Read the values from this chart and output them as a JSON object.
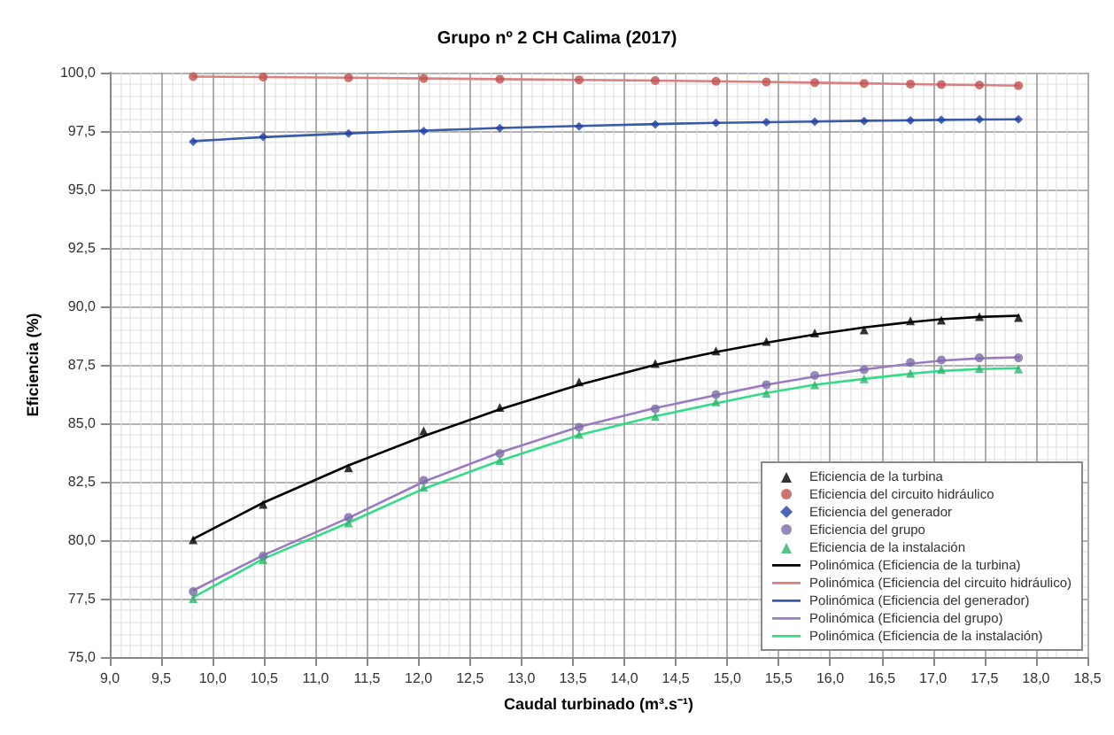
{
  "chart_data": {
    "type": "scatter",
    "title": "Grupo nº 2 CH Calima (2017)",
    "xlabel": "Caudal turbinado (m³.s⁻¹)",
    "ylabel": "Eficiencia (%)",
    "xlim": [
      9,
      18.5
    ],
    "ylim": [
      75,
      100
    ],
    "xticks": [
      {
        "value": 9,
        "label": "9,0"
      },
      {
        "value": 9.5,
        "label": "9,5"
      },
      {
        "value": 10,
        "label": "10,0"
      },
      {
        "value": 10.5,
        "label": "10,5"
      },
      {
        "value": 11,
        "label": "11,0"
      },
      {
        "value": 11.5,
        "label": "11,5"
      },
      {
        "value": 12,
        "label": "12,0"
      },
      {
        "value": 12.5,
        "label": "12,5"
      },
      {
        "value": 13,
        "label": "13,0"
      },
      {
        "value": 13.5,
        "label": "13,5"
      },
      {
        "value": 14,
        "label": "14,0"
      },
      {
        "value": 14.5,
        "label": "14,5"
      },
      {
        "value": 15,
        "label": "15,0"
      },
      {
        "value": 15.5,
        "label": "15,5"
      },
      {
        "value": 16,
        "label": "16,0"
      },
      {
        "value": 16.5,
        "label": "16,5"
      },
      {
        "value": 17,
        "label": "17,0"
      },
      {
        "value": 17.5,
        "label": "17,5"
      },
      {
        "value": 18,
        "label": "18,0"
      },
      {
        "value": 18.5,
        "label": "18,5"
      }
    ],
    "yticks": [
      {
        "value": 75,
        "label": "75,0"
      },
      {
        "value": 77.5,
        "label": "77,5"
      },
      {
        "value": 80,
        "label": "80,0"
      },
      {
        "value": 82.5,
        "label": "82,5"
      },
      {
        "value": 85,
        "label": "85,0"
      },
      {
        "value": 87.5,
        "label": "87,5"
      },
      {
        "value": 90,
        "label": "90,0"
      },
      {
        "value": 92.5,
        "label": "92,5"
      },
      {
        "value": 95,
        "label": "95,0"
      },
      {
        "value": 97.5,
        "label": "97,5"
      },
      {
        "value": 100,
        "label": "100,0"
      }
    ],
    "grid": true,
    "legend": "bottom right",
    "x": [
      9.81,
      10.49,
      11.32,
      12.05,
      12.79,
      13.56,
      14.3,
      14.89,
      15.38,
      15.85,
      16.33,
      16.78,
      17.08,
      17.45,
      17.83
    ],
    "series": [
      {
        "name": "Eficiencia de la turbina",
        "type": "scatter",
        "marker": "triangle",
        "color": "#000000",
        "values": [
          80.02,
          81.53,
          83.1,
          84.68,
          85.68,
          86.77,
          87.56,
          88.1,
          88.5,
          88.86,
          89.0,
          89.38,
          89.41,
          89.56,
          89.53
        ]
      },
      {
        "name": "Eficiencia del circuito hidráulico",
        "type": "scatter",
        "marker": "circle",
        "color": "#c0504d",
        "values": [
          99.83,
          99.81,
          99.78,
          99.75,
          99.72,
          99.69,
          99.66,
          99.63,
          99.6,
          99.57,
          99.54,
          99.51,
          99.49,
          99.47,
          99.44
        ]
      },
      {
        "name": "Eficiencia del generador",
        "type": "scatter",
        "marker": "diamond",
        "color": "#1f3fa8",
        "values": [
          97.05,
          97.25,
          97.4,
          97.5,
          97.62,
          97.7,
          97.78,
          97.85,
          97.88,
          97.9,
          97.93,
          97.95,
          97.98,
          98.0,
          98.0
        ]
      },
      {
        "name": "Eficiencia del grupo",
        "type": "scatter",
        "marker": "circle",
        "color": "#7d6aa8",
        "values": [
          77.8,
          79.32,
          80.98,
          82.56,
          83.71,
          84.83,
          85.62,
          86.23,
          86.65,
          87.05,
          87.29,
          87.6,
          87.71,
          87.8,
          87.8
        ]
      },
      {
        "name": "Eficiencia de la instalación",
        "type": "scatter",
        "marker": "triangle",
        "color": "#2fb36e",
        "values": [
          77.5,
          79.17,
          80.74,
          82.26,
          83.41,
          84.53,
          85.29,
          85.92,
          86.29,
          86.65,
          86.9,
          87.14,
          87.3,
          87.35,
          87.32
        ]
      },
      {
        "name": "Polinómica (Eficiencia de la turbina)",
        "type": "line",
        "line_style": "solid",
        "color": "#000000",
        "values": [
          80.05,
          81.6,
          83.2,
          84.45,
          85.6,
          86.65,
          87.5,
          88.05,
          88.45,
          88.8,
          89.1,
          89.33,
          89.45,
          89.55,
          89.6
        ]
      },
      {
        "name": "Polinómica (Eficiencia del circuito hidráulico)",
        "type": "line",
        "line_style": "solid",
        "color": "#d98080",
        "values": [
          99.83,
          99.81,
          99.78,
          99.75,
          99.72,
          99.69,
          99.66,
          99.63,
          99.6,
          99.57,
          99.54,
          99.51,
          99.49,
          99.47,
          99.44
        ]
      },
      {
        "name": "Polinómica (Eficiencia del generador)",
        "type": "line",
        "line_style": "solid",
        "color": "#3a5ba8",
        "values": [
          97.07,
          97.24,
          97.4,
          97.52,
          97.63,
          97.72,
          97.8,
          97.85,
          97.88,
          97.91,
          97.94,
          97.96,
          97.98,
          97.99,
          98.0
        ]
      },
      {
        "name": "Polinómica (Eficiencia del grupo)",
        "type": "line",
        "line_style": "solid",
        "color": "#9b7bc0",
        "values": [
          77.85,
          79.35,
          80.95,
          82.5,
          83.75,
          84.85,
          85.65,
          86.2,
          86.65,
          87.0,
          87.3,
          87.55,
          87.68,
          87.78,
          87.82
        ]
      },
      {
        "name": "Polinómica (Eficiencia de la instalación)",
        "type": "line",
        "line_style": "solid",
        "color": "#33dd88",
        "values": [
          77.55,
          79.2,
          80.75,
          82.2,
          83.4,
          84.5,
          85.3,
          85.85,
          86.3,
          86.65,
          86.9,
          87.12,
          87.24,
          87.32,
          87.36
        ]
      }
    ]
  }
}
